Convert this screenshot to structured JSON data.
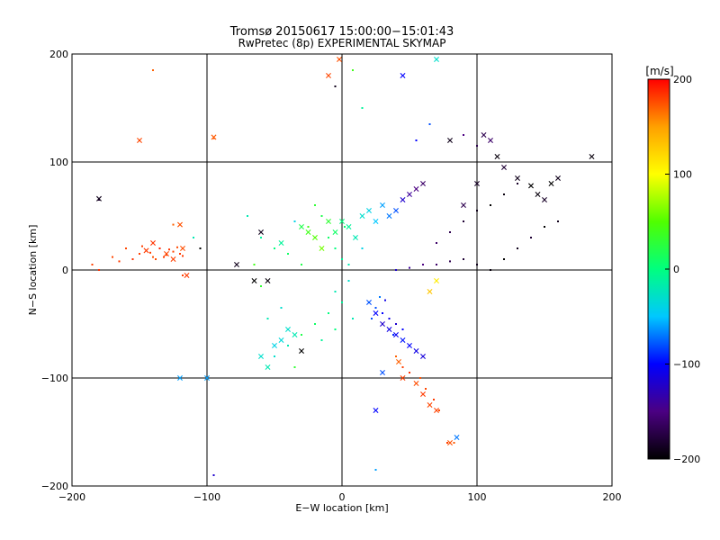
{
  "chart_data": {
    "type": "scatter",
    "title": "Tromsø 20150617 15:00:00−15:01:43",
    "subtitle": "RwPretec (8p) EXPERIMENTAL SKYMAP",
    "xlabel": "E−W location [km]",
    "ylabel": "N−S location [km]",
    "xlim": [
      -200,
      200
    ],
    "ylim": [
      -200,
      200
    ],
    "xticks": [
      -200,
      -100,
      0,
      100,
      200
    ],
    "yticks": [
      -200,
      -100,
      0,
      100,
      200
    ],
    "xtick_labels": [
      "−200",
      "−100",
      "0",
      "100",
      "200"
    ],
    "ytick_labels": [
      "−200",
      "−100",
      "0",
      "100",
      "200"
    ],
    "grid_lines": [
      -100,
      0,
      100
    ],
    "grid": true,
    "colorbar": {
      "label": "[m/s]",
      "range": [
        -200,
        200
      ],
      "ticks": [
        200,
        100,
        0,
        -100,
        -200
      ],
      "tick_labels": [
        "200",
        "100",
        "0",
        "−100",
        "−200"
      ],
      "colors": [
        "#000000",
        "#4b0082",
        "#0000ff",
        "#00c8ff",
        "#00ff7f",
        "#50ff00",
        "#ffff00",
        "#ffa000",
        "#ff0000"
      ]
    },
    "series": [
      {
        "marker": "dot",
        "points": [
          [
            -150,
            15,
            180
          ],
          [
            -145,
            18,
            185
          ],
          [
            -140,
            12,
            175
          ],
          [
            -135,
            20,
            190
          ],
          [
            -130,
            14,
            180
          ],
          [
            -125,
            17,
            178
          ],
          [
            -120,
            15,
            182
          ],
          [
            -155,
            10,
            185
          ],
          [
            -160,
            20,
            178
          ],
          [
            -148,
            22,
            180
          ],
          [
            -138,
            10,
            176
          ],
          [
            -128,
            19,
            184
          ],
          [
            -118,
            13,
            182
          ],
          [
            -142,
            16,
            179
          ],
          [
            -132,
            12,
            181
          ],
          [
            -122,
            21,
            177
          ],
          [
            -185,
            5,
            180
          ],
          [
            -170,
            12,
            178
          ],
          [
            -165,
            8,
            182
          ],
          [
            -180,
            0,
            185
          ],
          [
            -180,
            65,
            -180
          ],
          [
            -140,
            185,
            170
          ],
          [
            -150,
            120,
            180
          ],
          [
            -95,
            122,
            175
          ],
          [
            -118,
            -5,
            180
          ],
          [
            -125,
            42,
            170
          ],
          [
            -110,
            30,
            -20
          ],
          [
            -105,
            20,
            -200
          ],
          [
            0,
            10,
            -10
          ],
          [
            -5,
            20,
            0
          ],
          [
            5,
            5,
            -20
          ],
          [
            2,
            40,
            5
          ],
          [
            -10,
            30,
            10
          ],
          [
            -15,
            50,
            20
          ],
          [
            -20,
            60,
            30
          ],
          [
            -25,
            40,
            40
          ],
          [
            10,
            30,
            -30
          ],
          [
            15,
            20,
            -40
          ],
          [
            5,
            -10,
            -30
          ],
          [
            -5,
            -20,
            -20
          ],
          [
            0,
            -30,
            -10
          ],
          [
            -10,
            -40,
            0
          ],
          [
            -20,
            -50,
            10
          ],
          [
            -30,
            -60,
            20
          ],
          [
            -40,
            -70,
            -20
          ],
          [
            -50,
            -80,
            -30
          ],
          [
            -35,
            -90,
            30
          ],
          [
            -15,
            -65,
            -10
          ],
          [
            -5,
            -55,
            0
          ],
          [
            8,
            -45,
            -20
          ],
          [
            20,
            -30,
            -60
          ],
          [
            25,
            -35,
            -80
          ],
          [
            30,
            -40,
            -100
          ],
          [
            35,
            -45,
            -110
          ],
          [
            40,
            -50,
            -120
          ],
          [
            45,
            -55,
            -100
          ],
          [
            38,
            -60,
            -90
          ],
          [
            28,
            -25,
            -70
          ],
          [
            22,
            -45,
            -80
          ],
          [
            32,
            -28,
            -110
          ],
          [
            40,
            -80,
            170
          ],
          [
            45,
            -90,
            180
          ],
          [
            50,
            -95,
            185
          ],
          [
            58,
            -100,
            175
          ],
          [
            62,
            -110,
            178
          ],
          [
            68,
            -120,
            182
          ],
          [
            72,
            -130,
            176
          ],
          [
            78,
            -160,
            180
          ],
          [
            83,
            -160,
            172
          ],
          [
            40,
            0,
            -120
          ],
          [
            50,
            2,
            -140
          ],
          [
            60,
            5,
            -150
          ],
          [
            70,
            5,
            -160
          ],
          [
            80,
            8,
            -170
          ],
          [
            90,
            10,
            -180
          ],
          [
            100,
            5,
            -190
          ],
          [
            110,
            0,
            -195
          ],
          [
            120,
            10,
            -200
          ],
          [
            130,
            20,
            -190
          ],
          [
            140,
            30,
            -180
          ],
          [
            150,
            40,
            -200
          ],
          [
            160,
            45,
            -190
          ],
          [
            70,
            25,
            -160
          ],
          [
            80,
            35,
            -170
          ],
          [
            90,
            45,
            -180
          ],
          [
            100,
            55,
            -190
          ],
          [
            110,
            60,
            -200
          ],
          [
            120,
            70,
            -195
          ],
          [
            130,
            80,
            -185
          ],
          [
            -70,
            50,
            -20
          ],
          [
            -60,
            30,
            -10
          ],
          [
            -50,
            20,
            0
          ],
          [
            -40,
            15,
            10
          ],
          [
            -30,
            5,
            20
          ],
          [
            -45,
            -35,
            -30
          ],
          [
            -55,
            -45,
            -20
          ],
          [
            -60,
            -15,
            30
          ],
          [
            -65,
            5,
            40
          ],
          [
            -35,
            45,
            -40
          ],
          [
            55,
            120,
            -100
          ],
          [
            65,
            135,
            -80
          ],
          [
            90,
            125,
            -150
          ],
          [
            100,
            115,
            -170
          ],
          [
            -2,
            195,
            180
          ],
          [
            8,
            185,
            40
          ],
          [
            15,
            150,
            -10
          ],
          [
            -5,
            170,
            -190
          ],
          [
            25,
            -185,
            -60
          ],
          [
            -95,
            -190,
            -120
          ]
        ]
      },
      {
        "marker": "x",
        "points": [
          [
            -145,
            18,
            182
          ],
          [
            -130,
            15,
            178
          ],
          [
            -125,
            10,
            180
          ],
          [
            -118,
            20,
            176
          ],
          [
            -140,
            25,
            184
          ],
          [
            -180,
            66,
            -190
          ],
          [
            -150,
            120,
            178
          ],
          [
            -95,
            123,
            172
          ],
          [
            -120,
            42,
            175
          ],
          [
            -115,
            -5,
            182
          ],
          [
            -100,
            -100,
            -60
          ],
          [
            -78,
            5,
            -190
          ],
          [
            -65,
            -10,
            -200
          ],
          [
            -10,
            180,
            178
          ],
          [
            -2,
            195,
            175
          ],
          [
            45,
            180,
            -100
          ],
          [
            70,
            195,
            -30
          ],
          [
            80,
            120,
            -190
          ],
          [
            105,
            125,
            -170
          ],
          [
            110,
            120,
            -160
          ],
          [
            115,
            105,
            -195
          ],
          [
            120,
            95,
            -180
          ],
          [
            130,
            85,
            -190
          ],
          [
            140,
            78,
            -200
          ],
          [
            145,
            70,
            -195
          ],
          [
            150,
            65,
            -185
          ],
          [
            155,
            80,
            -200
          ],
          [
            160,
            85,
            -190
          ],
          [
            185,
            105,
            -195
          ],
          [
            90,
            60,
            -170
          ],
          [
            100,
            80,
            -185
          ],
          [
            -60,
            35,
            -190
          ],
          [
            -55,
            -10,
            -195
          ],
          [
            -45,
            25,
            -10
          ],
          [
            -30,
            40,
            20
          ],
          [
            -25,
            35,
            40
          ],
          [
            -20,
            30,
            50
          ],
          [
            -15,
            20,
            60
          ],
          [
            -10,
            45,
            30
          ],
          [
            -5,
            35,
            10
          ],
          [
            0,
            45,
            0
          ],
          [
            5,
            40,
            -10
          ],
          [
            10,
            30,
            -20
          ],
          [
            15,
            50,
            -30
          ],
          [
            20,
            55,
            -40
          ],
          [
            25,
            45,
            -50
          ],
          [
            30,
            60,
            -60
          ],
          [
            35,
            50,
            -70
          ],
          [
            40,
            55,
            -80
          ],
          [
            45,
            65,
            -120
          ],
          [
            50,
            70,
            -140
          ],
          [
            55,
            75,
            -150
          ],
          [
            60,
            80,
            -160
          ],
          [
            65,
            -20,
            130
          ],
          [
            70,
            -10,
            110
          ],
          [
            -50,
            -70,
            -40
          ],
          [
            -45,
            -65,
            -35
          ],
          [
            -40,
            -55,
            -30
          ],
          [
            -35,
            -60,
            -20
          ],
          [
            -60,
            -80,
            -30
          ],
          [
            -55,
            -90,
            -20
          ],
          [
            20,
            -30,
            -80
          ],
          [
            25,
            -40,
            -100
          ],
          [
            30,
            -50,
            -120
          ],
          [
            35,
            -55,
            -110
          ],
          [
            40,
            -60,
            -105
          ],
          [
            45,
            -65,
            -95
          ],
          [
            50,
            -70,
            -100
          ],
          [
            55,
            -75,
            -110
          ],
          [
            60,
            -80,
            -115
          ],
          [
            42,
            -85,
            170
          ],
          [
            45,
            -100,
            180
          ],
          [
            55,
            -105,
            176
          ],
          [
            60,
            -115,
            182
          ],
          [
            65,
            -125,
            178
          ],
          [
            70,
            -130,
            180
          ],
          [
            80,
            -160,
            175
          ],
          [
            85,
            -155,
            -70
          ],
          [
            25,
            -130,
            -100
          ],
          [
            30,
            -95,
            -80
          ],
          [
            -30,
            -75,
            -200
          ],
          [
            -120,
            -100,
            -60
          ]
        ]
      }
    ]
  }
}
